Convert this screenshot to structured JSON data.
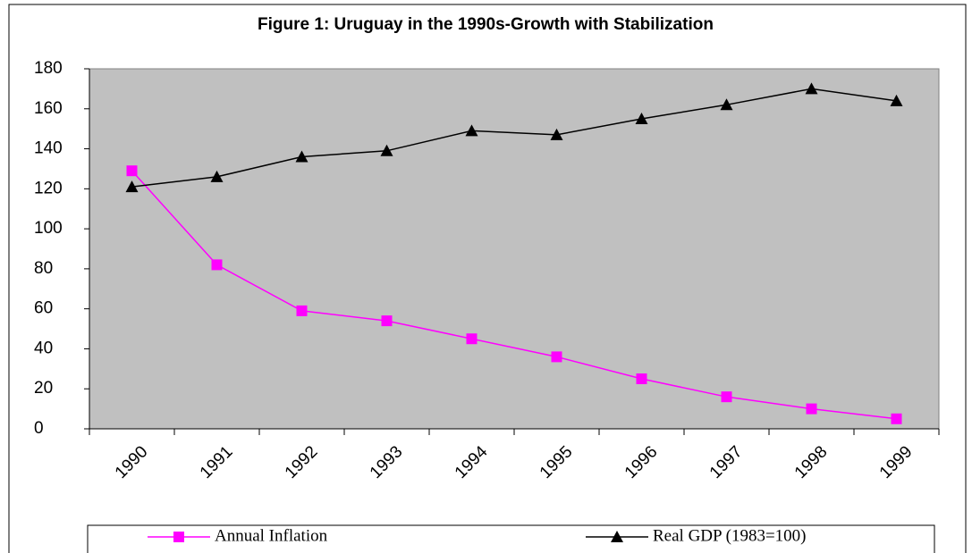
{
  "chart_data": {
    "type": "line",
    "title": "Figure 1:  Uruguay in the 1990s-Growth with Stabilization",
    "categories": [
      "1990",
      "1991",
      "1992",
      "1993",
      "1994",
      "1995",
      "1996",
      "1997",
      "1998",
      "1999"
    ],
    "series": [
      {
        "name": "Annual Inflation",
        "color": "#ff00ff",
        "marker": "square",
        "values": [
          129,
          82,
          59,
          54,
          45,
          36,
          25,
          16,
          10,
          5
        ]
      },
      {
        "name": "Real GDP (1983=100)",
        "color": "#000000",
        "marker": "triangle",
        "values": [
          121,
          126,
          136,
          139,
          149,
          147,
          155,
          162,
          170,
          164
        ]
      }
    ],
    "ylim": [
      0,
      180
    ],
    "yticks": [
      0,
      20,
      40,
      60,
      80,
      100,
      120,
      140,
      160,
      180
    ],
    "grid": false
  }
}
